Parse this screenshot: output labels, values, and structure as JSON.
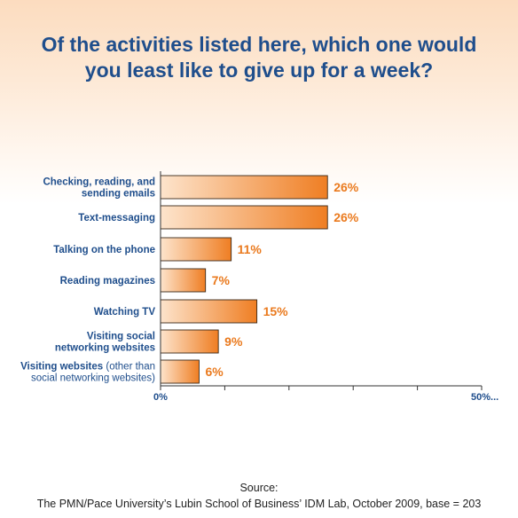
{
  "title_lines": [
    "Of the activities listed here, which one would",
    "you least like to give up for a week?"
  ],
  "colors": {
    "title": "#1f4e8c",
    "bar_dark": "#ef7e23",
    "bar_light": "#fde4cc",
    "value_text": "#ea7a1e"
  },
  "chart_data": {
    "type": "bar",
    "orientation": "horizontal",
    "title": "Of the activities listed here, which one would you least like to give up for a week?",
    "categories": [
      "Checking, reading, and sending emails",
      "Text-messaging",
      "Talking on the phone",
      "Reading magazines",
      "Watching TV",
      "Visiting social networking websites",
      "Visiting websites (other than social networking websites)"
    ],
    "category_label_lines": [
      [
        {
          "text": "Checking, reading, and",
          "bold": true
        },
        {
          "text": "sending emails",
          "bold": true
        }
      ],
      [
        {
          "text": "Text-messaging",
          "bold": true
        }
      ],
      [
        {
          "text": "Talking on the phone",
          "bold": true
        }
      ],
      [
        {
          "text": "Reading magazines",
          "bold": true
        }
      ],
      [
        {
          "text": "Watching TV",
          "bold": true
        }
      ],
      [
        {
          "text": "Visiting social",
          "bold": true
        },
        {
          "text": "networking websites",
          "bold": true
        }
      ],
      [
        {
          "text": "Visiting websites",
          "bold": true,
          "suffix": " (other than"
        },
        {
          "text": "social networking websites)",
          "bold": false
        }
      ]
    ],
    "values": [
      26,
      26,
      11,
      7,
      15,
      9,
      6
    ],
    "value_labels": [
      "26%",
      "26%",
      "11%",
      "7%",
      "15%",
      "9%",
      "6%"
    ],
    "xlim": [
      0,
      50
    ],
    "x_tick_labels": [
      "0%",
      "50%..."
    ],
    "minor_ticks": [
      10,
      20,
      30,
      40
    ],
    "grid": false,
    "legend": "none"
  },
  "source_lines": [
    "Source:",
    "The PMN/Pace University’s Lubin School of Business’ IDM Lab, October 2009, base = 203"
  ]
}
